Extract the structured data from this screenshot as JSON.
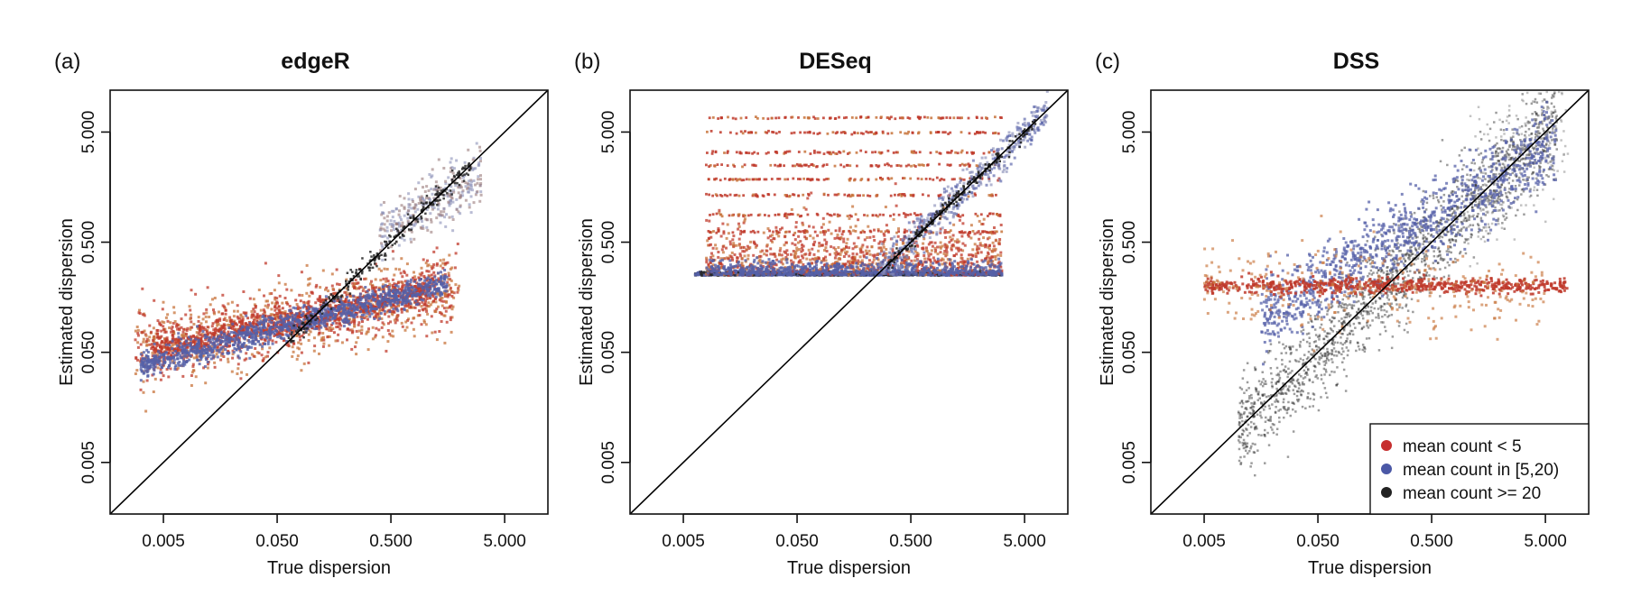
{
  "colors": {
    "low": "#c0392b",
    "mid": "#5560a8",
    "high": "#262626",
    "orange": "#c8743c",
    "line": "#000000"
  },
  "legend": {
    "items": [
      {
        "label": "mean count < 5",
        "color": "#c62f2f"
      },
      {
        "label": "mean count in [5,20)",
        "color": "#4b58a6"
      },
      {
        "label": "mean count >= 20",
        "color": "#222222"
      }
    ]
  },
  "chart_data": [
    {
      "type": "scatter",
      "panel": "(a)",
      "title": "edgeR",
      "xlabel": "True dispersion",
      "ylabel": "Estimated dispersion",
      "xscale": "log",
      "yscale": "log",
      "xlim": [
        0.0017,
        12
      ],
      "ylim": [
        0.0017,
        12
      ],
      "xticks": [
        {
          "value": 0.005,
          "label": "0.005"
        },
        {
          "value": 0.05,
          "label": "0.050"
        },
        {
          "value": 0.5,
          "label": "0.500"
        },
        {
          "value": 5,
          "label": "5.000"
        }
      ],
      "yticks": [
        {
          "value": 0.005,
          "label": "0.005"
        },
        {
          "value": 0.05,
          "label": "0.050"
        },
        {
          "value": 0.5,
          "label": "0.500"
        },
        {
          "value": 5,
          "label": "5.000"
        }
      ],
      "reference_line": "y = x",
      "legend": false
    },
    {
      "type": "scatter",
      "panel": "(b)",
      "title": "DESeq",
      "xlabel": "True dispersion",
      "ylabel": "Estimated dispersion",
      "xscale": "log",
      "yscale": "log",
      "xlim": [
        0.0017,
        12
      ],
      "ylim": [
        0.0017,
        12
      ],
      "xticks": [
        {
          "value": 0.005,
          "label": "0.005"
        },
        {
          "value": 0.05,
          "label": "0.050"
        },
        {
          "value": 0.5,
          "label": "0.500"
        },
        {
          "value": 5,
          "label": "5.000"
        }
      ],
      "yticks": [
        {
          "value": 0.005,
          "label": "0.005"
        },
        {
          "value": 0.05,
          "label": "0.050"
        },
        {
          "value": 0.5,
          "label": "0.500"
        },
        {
          "value": 5,
          "label": "5.000"
        }
      ],
      "reference_line": "y = x",
      "legend": false
    },
    {
      "type": "scatter",
      "panel": "(c)",
      "title": "DSS",
      "xlabel": "True dispersion",
      "ylabel": "Estimated dispersion",
      "xscale": "log",
      "yscale": "log",
      "xlim": [
        0.0017,
        12
      ],
      "ylim": [
        0.0017,
        12
      ],
      "xticks": [
        {
          "value": 0.005,
          "label": "0.005"
        },
        {
          "value": 0.05,
          "label": "0.050"
        },
        {
          "value": 0.5,
          "label": "0.500"
        },
        {
          "value": 5,
          "label": "5.000"
        }
      ],
      "yticks": [
        {
          "value": 0.005,
          "label": "0.005"
        },
        {
          "value": 0.05,
          "label": "0.050"
        },
        {
          "value": 0.5,
          "label": "0.500"
        },
        {
          "value": 5,
          "label": "5.000"
        }
      ],
      "reference_line": "y = x",
      "legend": true,
      "legend_position": "bottom-right"
    }
  ]
}
